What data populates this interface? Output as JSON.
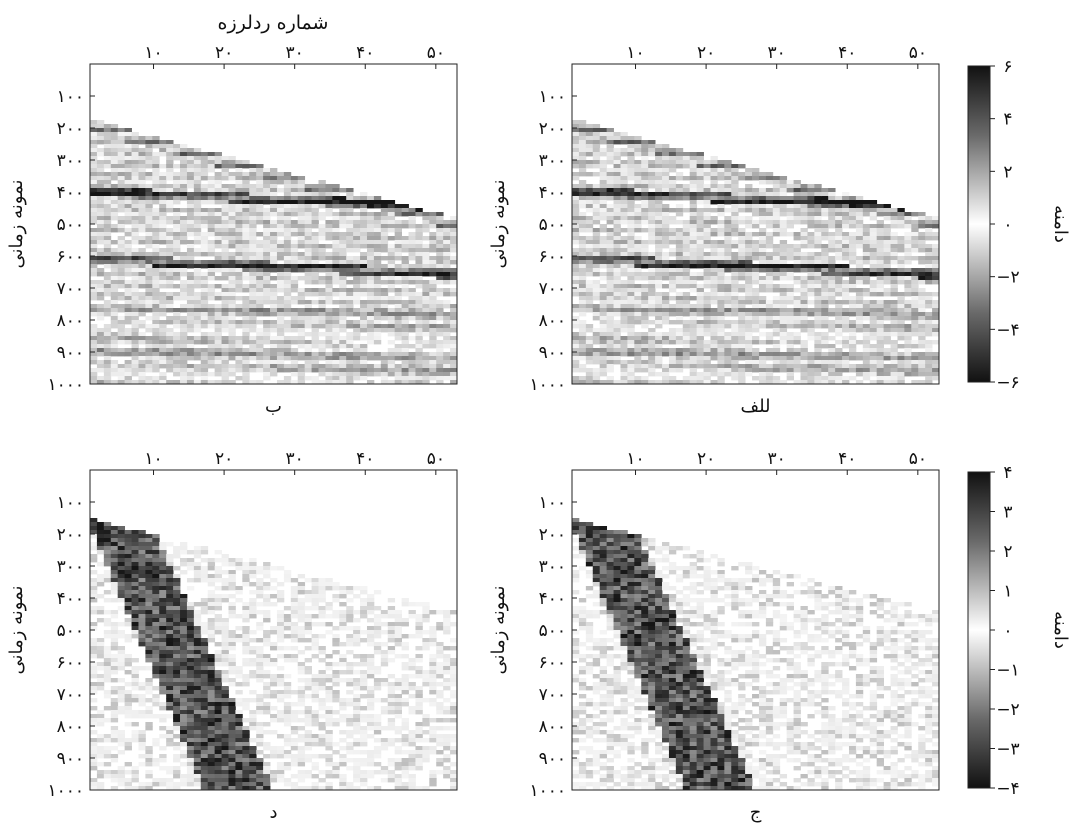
{
  "figure": {
    "x_axis_title": "شماره ردلرزه",
    "y_axis_title": "نمونه زمانی",
    "colorbar_title": "دامنه"
  },
  "chart_data": [
    {
      "type": "heatmap",
      "panel_label": "ب",
      "position": "top-left",
      "x_ticks": [
        10,
        20,
        30,
        40,
        50
      ],
      "x_tick_labels": [
        "۱۰",
        "۲۰",
        "۳۰",
        "۴۰",
        "۵۰"
      ],
      "x_axis_position": "top",
      "xlim": [
        1,
        53
      ],
      "y_ticks": [
        100,
        200,
        300,
        400,
        500,
        600,
        700,
        800,
        900,
        1000
      ],
      "y_tick_labels": [
        "۱۰۰",
        "۲۰۰",
        "۳۰۰",
        "۴۰۰",
        "۵۰۰",
        "۶۰۰",
        "۷۰۰",
        "۸۰۰",
        "۹۰۰",
        "۱۰۰۰"
      ],
      "ylim": [
        0,
        1000
      ],
      "y_reversed": true,
      "xlabel": "شماره ردلرزه",
      "ylabel": "نمونه زمانی",
      "colormap": "gray",
      "first_arrival": {
        "x": [
          1,
          53
        ],
        "y": [
          175,
          480
        ]
      },
      "strong_reflectors_y": [
        400,
        610
      ]
    },
    {
      "type": "heatmap",
      "panel_label": "للف",
      "position": "top-right",
      "x_ticks": [
        10,
        20,
        30,
        40,
        50
      ],
      "x_tick_labels": [
        "۱۰",
        "۲۰",
        "۳۰",
        "۴۰",
        "۵۰"
      ],
      "x_axis_position": "top",
      "xlim": [
        1,
        53
      ],
      "y_ticks": [
        100,
        200,
        300,
        400,
        500,
        600,
        700,
        800,
        900,
        1000
      ],
      "y_tick_labels": [
        "۱۰۰",
        "۲۰۰",
        "۳۰۰",
        "۴۰۰",
        "۵۰۰",
        "۶۰۰",
        "۷۰۰",
        "۸۰۰",
        "۹۰۰",
        "۱۰۰۰"
      ],
      "ylim": [
        0,
        1000
      ],
      "y_reversed": true,
      "ylabel": "نمونه زمانی",
      "colormap": "gray",
      "first_arrival": {
        "x": [
          1,
          53
        ],
        "y": [
          175,
          480
        ]
      },
      "strong_reflectors_y": [
        400,
        610
      ],
      "colorbar": {
        "ticks": [
          6,
          4,
          2,
          0,
          -2,
          -4,
          -6
        ],
        "tick_labels": [
          "۶",
          "۴",
          "۲",
          "۰",
          "−۲",
          "−۴",
          "−۶"
        ],
        "range": [
          -6,
          6
        ],
        "label": "دامنه"
      }
    },
    {
      "type": "heatmap",
      "panel_label": "د",
      "position": "bottom-left",
      "x_ticks": [
        10,
        20,
        30,
        40,
        50
      ],
      "x_tick_labels": [
        "۱۰",
        "۲۰",
        "۳۰",
        "۴۰",
        "۵۰"
      ],
      "x_axis_position": "top",
      "xlim": [
        1,
        53
      ],
      "y_ticks": [
        100,
        200,
        300,
        400,
        500,
        600,
        700,
        800,
        900,
        1000
      ],
      "y_tick_labels": [
        "۱۰۰",
        "۲۰۰",
        "۳۰۰",
        "۴۰۰",
        "۵۰۰",
        "۶۰۰",
        "۷۰۰",
        "۸۰۰",
        "۹۰۰",
        "۱۰۰۰"
      ],
      "ylim": [
        0,
        1000
      ],
      "y_reversed": true,
      "ylabel": "نمونه زمانی",
      "colormap": "gray",
      "first_arrival": {
        "x": [
          1,
          53
        ],
        "y": [
          155,
          440
        ]
      },
      "ground_roll": {
        "x_start_top": [
          1,
          8
        ],
        "x_end_bottom": [
          18,
          26
        ],
        "y_range": [
          155,
          1000
        ]
      }
    },
    {
      "type": "heatmap",
      "panel_label": "ج",
      "position": "bottom-right",
      "x_ticks": [
        10,
        20,
        30,
        40,
        50
      ],
      "x_tick_labels": [
        "۱۰",
        "۲۰",
        "۳۰",
        "۴۰",
        "۵۰"
      ],
      "x_axis_position": "top",
      "xlim": [
        1,
        53
      ],
      "y_ticks": [
        100,
        200,
        300,
        400,
        500,
        600,
        700,
        800,
        900,
        1000
      ],
      "y_tick_labels": [
        "۱۰۰",
        "۲۰۰",
        "۳۰۰",
        "۴۰۰",
        "۵۰۰",
        "۶۰۰",
        "۷۰۰",
        "۸۰۰",
        "۹۰۰",
        "۱۰۰۰"
      ],
      "ylim": [
        0,
        1000
      ],
      "y_reversed": true,
      "ylabel": "نمونه زمانی",
      "colormap": "gray",
      "first_arrival": {
        "x": [
          1,
          53
        ],
        "y": [
          155,
          440
        ]
      },
      "ground_roll": {
        "x_start_top": [
          1,
          8
        ],
        "x_end_bottom": [
          18,
          26
        ],
        "y_range": [
          155,
          1000
        ]
      },
      "colorbar": {
        "ticks": [
          4,
          3,
          2,
          1,
          0,
          -1,
          -2,
          -3,
          -4
        ],
        "tick_labels": [
          "۴",
          "۳",
          "۲",
          "۱",
          "۰",
          "−۱",
          "−۲",
          "−۳",
          "−۴"
        ],
        "range": [
          -4,
          4
        ],
        "label": "دامنه"
      }
    }
  ]
}
